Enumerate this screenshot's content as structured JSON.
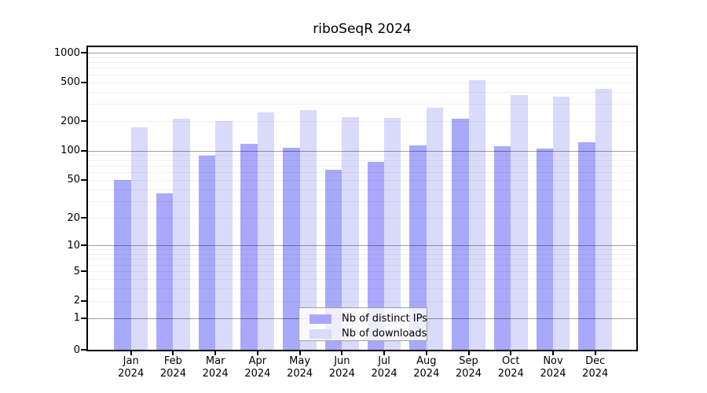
{
  "title": "riboSeqR 2024",
  "colors": {
    "ips_bar": "#a9a9fb",
    "downloads_bar": "#dadafb",
    "grid_minor": "#ebebeb",
    "grid_major": "#9e9e9e",
    "axis": "#000000",
    "background": "#ffffff"
  },
  "legend": {
    "items": [
      {
        "label": "Nb of distinct IPs",
        "series": "ips"
      },
      {
        "label": "Nb of downloads",
        "series": "downloads"
      }
    ]
  },
  "chart_data": {
    "type": "bar",
    "title": "riboSeqR 2024",
    "categories": [
      "Jan 2024",
      "Feb 2024",
      "Mar 2024",
      "Apr 2024",
      "May 2024",
      "Jun 2024",
      "Jul 2024",
      "Aug 2024",
      "Sep 2024",
      "Oct 2024",
      "Nov 2024",
      "Dec 2024"
    ],
    "series": [
      {
        "name": "Nb of distinct IPs",
        "color": "#a9a9fb",
        "values": [
          50,
          36,
          89,
          118,
          108,
          63,
          76,
          113,
          212,
          111,
          105,
          122
        ]
      },
      {
        "name": "Nb of downloads",
        "color": "#dadafb",
        "values": [
          172,
          214,
          200,
          247,
          262,
          222,
          218,
          273,
          525,
          372,
          358,
          430
        ]
      }
    ],
    "xlabel": "",
    "ylabel": "",
    "yscale": "log1p",
    "yticks": [
      0,
      1,
      2,
      5,
      10,
      20,
      50,
      100,
      200,
      500,
      1000
    ],
    "ylim": [
      0,
      1000
    ],
    "grid": true,
    "legend_position": "inside-bottom-center"
  }
}
